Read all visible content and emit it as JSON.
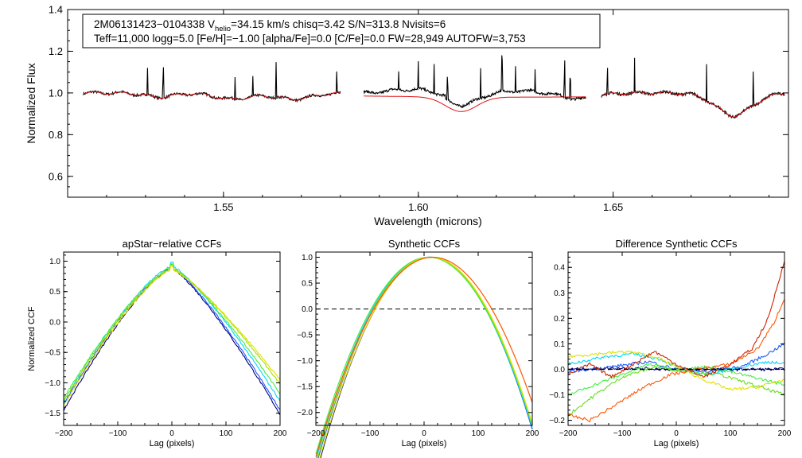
{
  "chart_data": [
    {
      "type": "line",
      "id": "spectrum",
      "info_line1": {
        "prefix": "2M06131423−0104338  V",
        "sub": "helio",
        "suffix": "=34.15 km/s  chisq=3.42  S/N=313.8  Nvisits=6"
      },
      "info_line2": "Teff=11,000 logg=5.0 [Fe/H]=−1.00 [alpha/Fe]=0.0 [C/Fe]=0.0 FW=28,949 AUTOFW=3,753",
      "xlabel": "Wavelength (microns)",
      "ylabel": "Normalized Flux",
      "xlim": [
        1.51,
        1.695
      ],
      "ylim": [
        0.5,
        1.4
      ],
      "xticks": [
        {
          "v": 1.55,
          "label": "1.55"
        },
        {
          "v": 1.6,
          "label": "1.60"
        },
        {
          "v": 1.65,
          "label": "1.65"
        }
      ],
      "yticks": [
        {
          "v": 0.6,
          "label": "0.6"
        },
        {
          "v": 0.8,
          "label": "0.8"
        },
        {
          "v": 1.0,
          "label": "1.0"
        },
        {
          "v": 1.2,
          "label": "1.2"
        },
        {
          "v": 1.4,
          "label": "1.4"
        }
      ],
      "chips": [
        [
          1.514,
          1.58
        ],
        [
          1.586,
          1.643
        ],
        [
          1.647,
          1.694
        ]
      ],
      "dips": [
        {
          "center": 1.5335,
          "depth": 0.02,
          "width": 0.004
        },
        {
          "center": 1.5525,
          "depth": 0.03,
          "width": 0.005
        },
        {
          "center": 1.568,
          "depth": 0.03,
          "width": 0.005
        },
        {
          "center": 1.611,
          "depth": 0.07,
          "width": 0.005
        },
        {
          "center": 1.641,
          "depth": 0.03,
          "width": 0.005
        },
        {
          "center": 1.681,
          "depth": 0.11,
          "width": 0.005
        }
      ],
      "spikes": [
        1.5305,
        1.5345,
        1.553,
        1.5575,
        1.5635,
        1.579,
        1.595,
        1.6,
        1.604,
        1.6075,
        1.616,
        1.6215,
        1.625,
        1.63,
        1.6375,
        1.639,
        1.6485,
        1.6555,
        1.674,
        1.686
      ],
      "series": [
        {
          "name": "observed",
          "color": "#000000"
        },
        {
          "name": "model",
          "color": "#dd1111"
        }
      ]
    },
    {
      "type": "line",
      "id": "apstar_ccf",
      "title": "apStar−relative CCFs",
      "xlabel": "Lag (pixels)",
      "ylabel": "Normalized CCF",
      "xlim": [
        -200,
        200
      ],
      "ylim": [
        -1.7,
        1.15
      ],
      "xticks": [
        {
          "v": -200,
          "label": "−200"
        },
        {
          "v": -100,
          "label": "−100"
        },
        {
          "v": 0,
          "label": "0"
        },
        {
          "v": 100,
          "label": "100"
        },
        {
          "v": 200,
          "label": "200"
        }
      ],
      "yticks": [
        {
          "v": 1.0,
          "label": "1.0"
        },
        {
          "v": 0.5,
          "label": "0.5"
        },
        {
          "v": 0.0,
          "label": "0.0"
        },
        {
          "v": -0.5,
          "label": "−0.5"
        },
        {
          "v": -1.0,
          "label": "−1.0"
        },
        {
          "v": -1.5,
          "label": "−1.5"
        }
      ],
      "series": [
        {
          "name": "s1",
          "color": "#000080",
          "peak": 0.88,
          "start": -1.45,
          "end": -1.52
        },
        {
          "name": "s2",
          "color": "#1e5aff",
          "peak": 0.89,
          "start": -1.35,
          "end": -1.45
        },
        {
          "name": "s3",
          "color": "#00d8ff",
          "peak": 0.92,
          "start": -1.3,
          "end": -1.3
        },
        {
          "name": "s4",
          "color": "#44ee44",
          "peak": 0.9,
          "start": -1.25,
          "end": -1.18
        },
        {
          "name": "s5",
          "color": "#a8e000",
          "peak": 0.88,
          "start": -1.3,
          "end": -1.02
        },
        {
          "name": "s6",
          "color": "#e0e000",
          "peak": 0.86,
          "start": -1.38,
          "end": -0.95
        }
      ]
    },
    {
      "type": "line",
      "id": "synthetic_ccf",
      "title": "Synthetic CCFs",
      "xlabel": "Lag (pixels)",
      "ylabel": "",
      "xlim": [
        -200,
        200
      ],
      "ylim": [
        -2.25,
        1.1
      ],
      "xticks": [
        {
          "v": -200,
          "label": "−200"
        },
        {
          "v": -100,
          "label": "−100"
        },
        {
          "v": 0,
          "label": "0"
        },
        {
          "v": 100,
          "label": "100"
        },
        {
          "v": 200,
          "label": "200"
        }
      ],
      "yticks": [
        {
          "v": 1.0,
          "label": "1.0"
        },
        {
          "v": 0.5,
          "label": "0.5"
        },
        {
          "v": 0.0,
          "label": "0.0"
        },
        {
          "v": -0.5,
          "label": "−0.5"
        },
        {
          "v": -1.0,
          "label": "−1.0"
        },
        {
          "v": -1.5,
          "label": "−1.5"
        },
        {
          "v": -2.0,
          "label": "−2.0"
        }
      ],
      "reference_line": 0.0,
      "series": [
        {
          "name": "s1",
          "color": "#000080",
          "peak": 1.0,
          "center": 12,
          "width": 92
        },
        {
          "name": "s2",
          "color": "#1e5aff",
          "peak": 1.0,
          "center": 10,
          "width": 93
        },
        {
          "name": "s3",
          "color": "#00d8ff",
          "peak": 1.0,
          "center": 9,
          "width": 94
        },
        {
          "name": "s4",
          "color": "#44ee44",
          "peak": 1.0,
          "center": 8,
          "width": 95
        },
        {
          "name": "s5",
          "color": "#a8e000",
          "peak": 1.0,
          "center": 11,
          "width": 94
        },
        {
          "name": "s6",
          "color": "#e0e000",
          "peak": 1.0,
          "center": 13,
          "width": 93
        },
        {
          "name": "s7",
          "color": "#ff5500",
          "peak": 1.0,
          "center": 16,
          "width": 98
        }
      ]
    },
    {
      "type": "line",
      "id": "difference_ccf",
      "title": "Difference Synthetic CCFs",
      "xlabel": "Lag (pixels)",
      "ylabel": "",
      "xlim": [
        -200,
        200
      ],
      "ylim": [
        -0.22,
        0.46
      ],
      "xticks": [
        {
          "v": -200,
          "label": "−200"
        },
        {
          "v": -100,
          "label": "−100"
        },
        {
          "v": 0,
          "label": "0"
        },
        {
          "v": 100,
          "label": "100"
        },
        {
          "v": 200,
          "label": "200"
        }
      ],
      "yticks": [
        {
          "v": 0.4,
          "label": "0.4"
        },
        {
          "v": 0.3,
          "label": "0.3"
        },
        {
          "v": 0.2,
          "label": "0.2"
        },
        {
          "v": 0.1,
          "label": "0.1"
        },
        {
          "v": 0.0,
          "label": "0.0"
        },
        {
          "v": -0.1,
          "label": "−0.1"
        },
        {
          "v": -0.2,
          "label": "−0.2"
        }
      ],
      "reference_line": 0.0,
      "series": [
        {
          "name": "d1",
          "color": "#000080",
          "points": [
            [
              -200,
              0.0
            ],
            [
              -100,
              0.005
            ],
            [
              0,
              0.0
            ],
            [
              100,
              0.0
            ],
            [
              200,
              0.0
            ]
          ]
        },
        {
          "name": "d2",
          "color": "#1e5aff",
          "points": [
            [
              -200,
              -0.01
            ],
            [
              -120,
              0.01
            ],
            [
              -50,
              0.03
            ],
            [
              0,
              0.0
            ],
            [
              60,
              -0.01
            ],
            [
              120,
              0.01
            ],
            [
              160,
              0.05
            ],
            [
              200,
              0.1
            ]
          ]
        },
        {
          "name": "d3",
          "color": "#00d8ff",
          "points": [
            [
              -200,
              0.02
            ],
            [
              -130,
              0.05
            ],
            [
              -80,
              0.06
            ],
            [
              -30,
              0.04
            ],
            [
              10,
              0.0
            ],
            [
              60,
              -0.02
            ],
            [
              120,
              0.01
            ],
            [
              170,
              0.03
            ],
            [
              200,
              0.02
            ]
          ]
        },
        {
          "name": "d4",
          "color": "#44ee44",
          "points": [
            [
              -200,
              -0.1
            ],
            [
              -150,
              -0.06
            ],
            [
              -100,
              -0.02
            ],
            [
              -50,
              0.02
            ],
            [
              0,
              0.0
            ],
            [
              60,
              0.01
            ],
            [
              120,
              -0.02
            ],
            [
              200,
              -0.06
            ]
          ]
        },
        {
          "name": "d5",
          "color": "#66dd22",
          "points": [
            [
              -200,
              -0.18
            ],
            [
              -150,
              -0.1
            ],
            [
              -100,
              -0.03
            ],
            [
              -40,
              0.01
            ],
            [
              20,
              -0.01
            ],
            [
              80,
              -0.02
            ],
            [
              140,
              -0.06
            ],
            [
              200,
              -0.1
            ]
          ]
        },
        {
          "name": "d6",
          "color": "#e0e000",
          "points": [
            [
              -200,
              0.05
            ],
            [
              -150,
              0.06
            ],
            [
              -90,
              0.07
            ],
            [
              -40,
              0.05
            ],
            [
              10,
              0.0
            ],
            [
              50,
              -0.04
            ],
            [
              100,
              -0.08
            ],
            [
              150,
              -0.07
            ],
            [
              200,
              -0.04
            ]
          ]
        },
        {
          "name": "d7",
          "color": "#ff5500",
          "points": [
            [
              -200,
              -0.18
            ],
            [
              -160,
              -0.2
            ],
            [
              -120,
              -0.15
            ],
            [
              -60,
              -0.07
            ],
            [
              -10,
              -0.02
            ],
            [
              40,
              0.0
            ],
            [
              100,
              0.02
            ],
            [
              150,
              0.08
            ],
            [
              180,
              0.18
            ],
            [
              200,
              0.28
            ]
          ]
        },
        {
          "name": "d8",
          "color": "#cc2200",
          "points": [
            [
              -200,
              -0.02
            ],
            [
              -160,
              0.02
            ],
            [
              -120,
              -0.03
            ],
            [
              -80,
              0.02
            ],
            [
              -40,
              0.07
            ],
            [
              0,
              0.02
            ],
            [
              50,
              -0.03
            ],
            [
              100,
              0.02
            ],
            [
              140,
              0.08
            ],
            [
              170,
              0.2
            ],
            [
              190,
              0.35
            ],
            [
              200,
              0.43
            ]
          ]
        }
      ]
    }
  ]
}
